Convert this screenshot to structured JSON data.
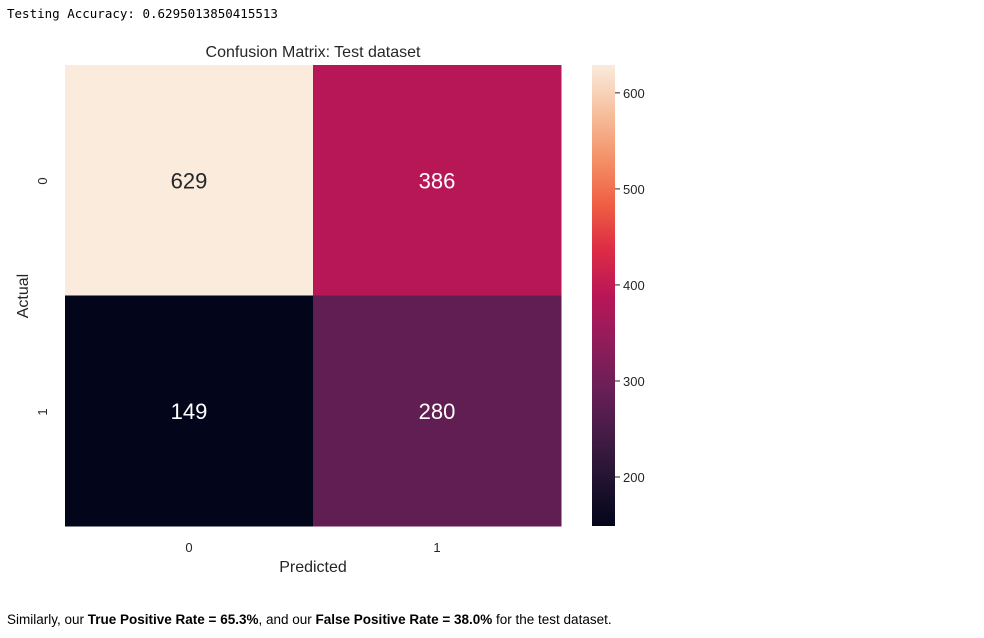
{
  "output": {
    "label": "Testing Accuracy:",
    "value": "0.6295013850415513"
  },
  "chart_data": {
    "type": "heatmap",
    "title": "Confusion Matrix: Test dataset",
    "xlabel": "Predicted",
    "ylabel": "Actual",
    "x_categories": [
      "0",
      "1"
    ],
    "y_categories": [
      "0",
      "1"
    ],
    "matrix": [
      [
        629,
        386
      ],
      [
        149,
        280
      ]
    ],
    "colorbar": {
      "min": 149,
      "max": 629,
      "ticks": [
        "600",
        "500",
        "400",
        "300",
        "200"
      ],
      "tick_values": [
        600,
        500,
        400,
        300,
        200
      ],
      "colormap": "rocket"
    },
    "annotation_colors": {
      "light_cell": "#262626",
      "dark_cell": "#ffffff"
    }
  },
  "note": {
    "t1": "Similarly, our ",
    "b1": "True Positive Rate = 65.3%",
    "t2": ", and our ",
    "b2": "False Positive Rate = 38.0%",
    "t3": " for the test dataset."
  }
}
